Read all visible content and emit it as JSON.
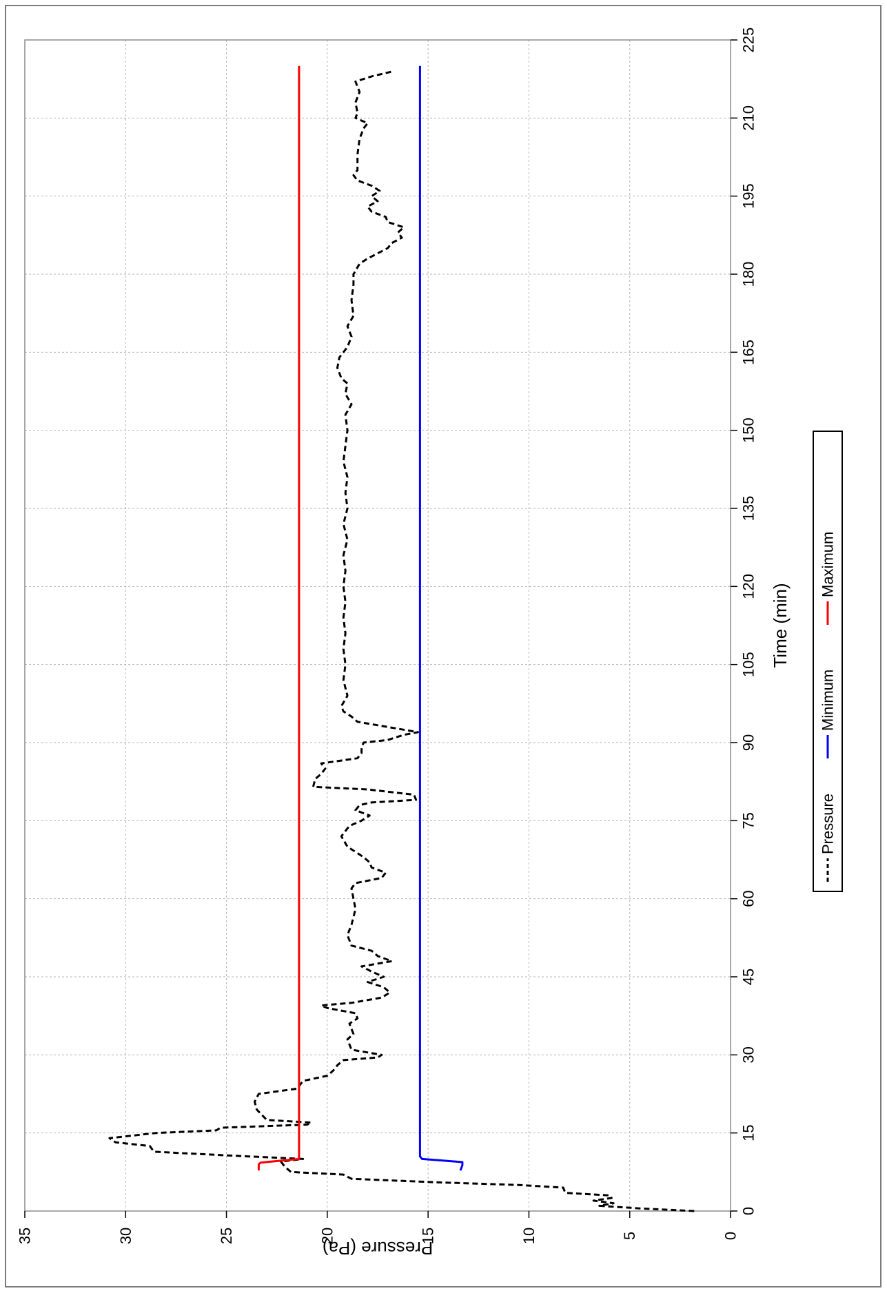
{
  "chart_data": {
    "type": "line",
    "orientation": "rotated 90° clockwise (time runs from bottom to top, pressure increases to the left)",
    "xlabel": "Time (min)",
    "ylabel": "Pressure  (Pa)",
    "xlim": [
      0,
      225
    ],
    "ylim": [
      0,
      35
    ],
    "x_ticks": [
      "0",
      "15",
      "30",
      "45",
      "60",
      "75",
      "90",
      "105",
      "120",
      "135",
      "150",
      "165",
      "180",
      "195",
      "210",
      "225"
    ],
    "y_ticks": [
      "0",
      "5",
      "10",
      "15",
      "20",
      "25",
      "30",
      "35"
    ],
    "grid": true,
    "legend_position": "right",
    "series": [
      {
        "name": "Pressure",
        "color": "#000000",
        "style": "dashed",
        "points": [
          [
            0,
            1.8
          ],
          [
            0.5,
            4.5
          ],
          [
            1,
            6.5
          ],
          [
            1.5,
            5.8
          ],
          [
            2,
            6.8
          ],
          [
            2.5,
            5.9
          ],
          [
            3,
            6
          ],
          [
            3.5,
            8.2
          ],
          [
            4.5,
            8.3
          ],
          [
            5,
            10.5
          ],
          [
            5.5,
            14.5
          ],
          [
            6.2,
            18.8
          ],
          [
            7,
            19.2
          ],
          [
            7.5,
            21.8
          ],
          [
            8.5,
            22.1
          ],
          [
            9.5,
            22.3
          ],
          [
            10,
            21.2
          ],
          [
            10.6,
            24.5
          ],
          [
            11.4,
            28.6
          ],
          [
            12.5,
            28.8
          ],
          [
            13.2,
            30.5
          ],
          [
            14,
            30.8
          ],
          [
            15,
            28.5
          ],
          [
            15.5,
            25.5
          ],
          [
            16,
            25.3
          ],
          [
            16.6,
            21
          ],
          [
            17,
            20.8
          ],
          [
            17.5,
            23
          ],
          [
            19.5,
            23.5
          ],
          [
            21,
            23.6
          ],
          [
            22.5,
            23.4
          ],
          [
            23.5,
            21.5
          ],
          [
            25,
            21.2
          ],
          [
            26,
            20
          ],
          [
            27,
            19.7
          ],
          [
            28,
            19.5
          ],
          [
            29,
            19.2
          ],
          [
            29.5,
            17.5
          ],
          [
            30,
            17.3
          ],
          [
            31,
            18.8
          ],
          [
            33,
            19
          ],
          [
            34,
            18.7
          ],
          [
            36,
            18.9
          ],
          [
            37,
            18.5
          ],
          [
            38,
            18.6
          ],
          [
            39,
            20
          ],
          [
            39.5,
            20.3
          ],
          [
            40,
            18.8
          ],
          [
            41,
            17.3
          ],
          [
            42,
            16.9
          ],
          [
            43,
            17.2
          ],
          [
            44,
            18
          ],
          [
            45,
            17.2
          ],
          [
            46,
            17.8
          ],
          [
            47,
            18.3
          ],
          [
            48,
            16.8
          ],
          [
            49,
            17.5
          ],
          [
            50,
            17.8
          ],
          [
            51,
            18.8
          ],
          [
            53,
            19
          ],
          [
            55,
            18.8
          ],
          [
            58,
            18.6
          ],
          [
            60,
            18.7
          ],
          [
            62,
            18.8
          ],
          [
            63,
            18.6
          ],
          [
            64,
            17.3
          ],
          [
            65,
            17.1
          ],
          [
            66,
            17.8
          ],
          [
            67,
            17.9
          ],
          [
            68,
            18.2
          ],
          [
            70,
            19
          ],
          [
            72,
            19.3
          ],
          [
            74,
            18.9
          ],
          [
            75,
            18.3
          ],
          [
            76,
            17.9
          ],
          [
            77,
            18.6
          ],
          [
            78,
            18.4
          ],
          [
            78.5,
            17.8
          ],
          [
            79,
            15.6
          ],
          [
            80,
            15.7
          ],
          [
            81,
            18
          ],
          [
            81.5,
            20.7
          ],
          [
            83,
            20.6
          ],
          [
            84,
            20.3
          ],
          [
            85,
            20.1
          ],
          [
            86,
            20.3
          ],
          [
            87,
            18.5
          ],
          [
            88,
            18.3
          ],
          [
            89,
            18.3
          ],
          [
            90,
            18.2
          ],
          [
            90.5,
            17
          ],
          [
            91.5,
            16.2
          ],
          [
            92,
            15.5
          ],
          [
            93,
            17
          ],
          [
            94,
            18.5
          ],
          [
            95,
            18.8
          ],
          [
            96,
            19.2
          ],
          [
            97,
            19.3
          ],
          [
            99,
            19
          ],
          [
            102,
            19.2
          ],
          [
            105,
            19.1
          ],
          [
            108,
            19.2
          ],
          [
            111,
            19.1
          ],
          [
            114,
            19.2
          ],
          [
            117,
            19.1
          ],
          [
            120,
            19.2
          ],
          [
            123,
            19.1
          ],
          [
            126,
            19.2
          ],
          [
            129,
            19
          ],
          [
            132,
            19.2
          ],
          [
            135,
            19
          ],
          [
            138,
            19.1
          ],
          [
            141,
            19
          ],
          [
            144,
            19.2
          ],
          [
            147,
            19.1
          ],
          [
            150,
            19
          ],
          [
            153,
            19.1
          ],
          [
            155,
            18.8
          ],
          [
            157,
            19.1
          ],
          [
            159,
            19
          ],
          [
            160,
            19.3
          ],
          [
            162,
            19.5
          ],
          [
            164,
            19.4
          ],
          [
            166,
            19
          ],
          [
            168,
            18.8
          ],
          [
            170,
            19
          ],
          [
            172,
            18.7
          ],
          [
            175,
            18.8
          ],
          [
            178,
            18.7
          ],
          [
            180,
            18.7
          ],
          [
            182,
            18.4
          ],
          [
            183,
            18
          ],
          [
            184,
            17.5
          ],
          [
            185,
            17
          ],
          [
            186,
            16.8
          ],
          [
            187,
            16.3
          ],
          [
            188,
            16.5
          ],
          [
            189,
            16.2
          ],
          [
            190,
            17
          ],
          [
            191,
            17.1
          ],
          [
            192,
            17.8
          ],
          [
            193,
            18
          ],
          [
            194,
            17.5
          ],
          [
            195,
            17.8
          ],
          [
            196,
            17.4
          ],
          [
            197,
            17.8
          ],
          [
            198,
            18.5
          ],
          [
            199,
            18.7
          ],
          [
            200,
            18.5
          ],
          [
            203,
            18.5
          ],
          [
            206,
            18.4
          ],
          [
            208,
            18.2
          ],
          [
            209,
            18
          ],
          [
            210,
            18.6
          ],
          [
            211,
            18.5
          ],
          [
            213,
            18.6
          ],
          [
            215,
            18.4
          ],
          [
            217,
            18.6
          ],
          [
            218,
            17.8
          ],
          [
            219,
            16.7
          ]
        ]
      },
      {
        "name": "Minimum",
        "color": "#0000ff",
        "style": "solid",
        "points": [
          [
            7.8,
            13.4
          ],
          [
            8.8,
            13.3
          ],
          [
            9.4,
            13.3
          ],
          [
            10,
            15.3
          ],
          [
            10.5,
            15.4
          ],
          [
            220,
            15.4
          ]
        ]
      },
      {
        "name": "Maximum",
        "color": "#ff0000",
        "style": "solid",
        "points": [
          [
            7.8,
            23.4
          ],
          [
            9,
            23.4
          ],
          [
            9.3,
            23.3
          ],
          [
            10,
            21.4
          ],
          [
            10.5,
            21.4
          ],
          [
            220,
            21.4
          ]
        ]
      }
    ]
  }
}
